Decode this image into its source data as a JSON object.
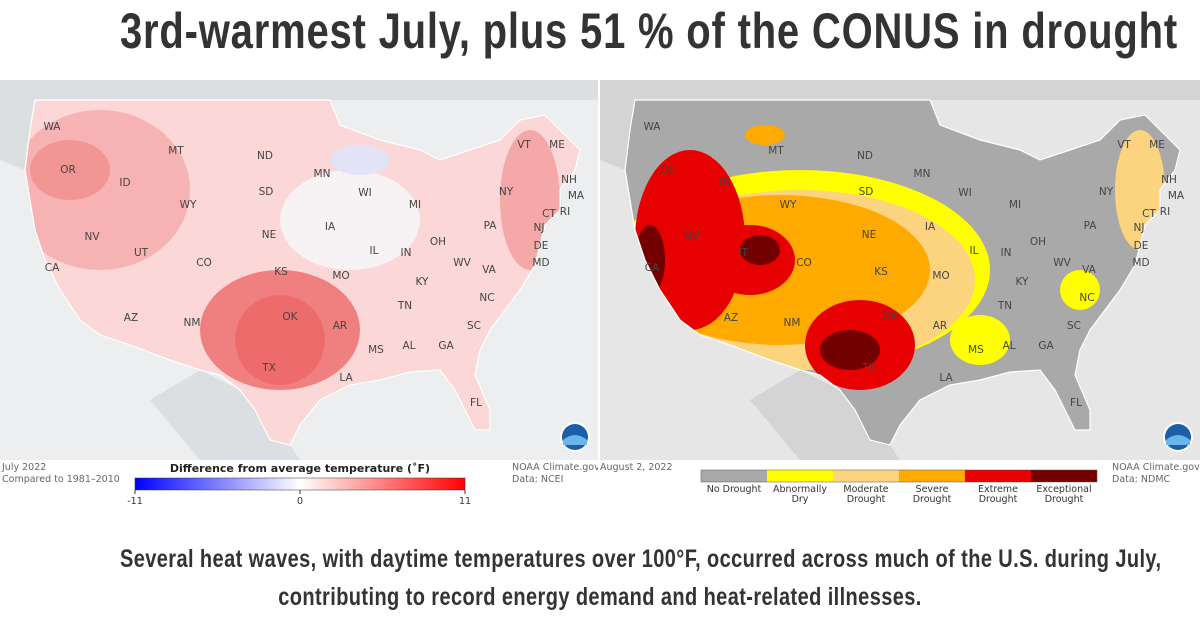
{
  "title": "3rd-warmest July, plus 51 % of the CONUS in drought",
  "left_map": {
    "state_labels": [
      "WA",
      "OR",
      "ID",
      "MT",
      "ND",
      "SD",
      "WY",
      "NV",
      "UT",
      "CA",
      "CO",
      "NE",
      "KS",
      "MN",
      "WI",
      "IA",
      "IL",
      "MI",
      "IN",
      "OH",
      "MO",
      "OK",
      "AZ",
      "NM",
      "TX",
      "AR",
      "TN",
      "KY",
      "MS",
      "AL",
      "GA",
      "SC",
      "NC",
      "VA",
      "WV",
      "PA",
      "NY",
      "VT",
      "ME",
      "NH",
      "MA",
      "CT",
      "RI",
      "NJ",
      "DE",
      "MD",
      "LA",
      "FL"
    ],
    "date": "July 2022",
    "baseline": "Compared to 1981–2010",
    "legend": {
      "title": "Difference from average temperature (˚F)",
      "ticks": [
        -11,
        0,
        11
      ]
    },
    "credit": "NOAA Climate.gov",
    "source": "Data: NCEI"
  },
  "right_map": {
    "state_labels": [
      "WA",
      "OR",
      "ID",
      "MT",
      "ND",
      "SD",
      "WY",
      "NV",
      "UT",
      "CA",
      "CO",
      "NE",
      "KS",
      "MN",
      "WI",
      "IA",
      "IL",
      "MI",
      "IN",
      "OH",
      "MO",
      "OK",
      "AZ",
      "NM",
      "TX",
      "AR",
      "TN",
      "KY",
      "MS",
      "AL",
      "GA",
      "SC",
      "NC",
      "VA",
      "WV",
      "PA",
      "NY",
      "VT",
      "ME",
      "NH",
      "MA",
      "CT",
      "RI",
      "NJ",
      "DE",
      "MD",
      "LA",
      "FL"
    ],
    "date": "August 2, 2022",
    "legend": {
      "categories": [
        {
          "label": "No Drought",
          "color": "#a9a9a9"
        },
        {
          "label": "Abnormally Dry",
          "color": "#ffff00"
        },
        {
          "label": "Moderate Drought",
          "color": "#fcd37f"
        },
        {
          "label": "Severe Drought",
          "color": "#ffaa00"
        },
        {
          "label": "Extreme Drought",
          "color": "#e60000"
        },
        {
          "label": "Exceptional Drought",
          "color": "#730000"
        }
      ]
    },
    "credit": "NOAA Climate.gov",
    "source": "Data: NDMC"
  },
  "caption": [
    "Several heat waves, with daytime temperatures over 100°F, occurred across much of the U.S. during July,",
    "contributing to record energy demand and heat-related illnesses."
  ]
}
